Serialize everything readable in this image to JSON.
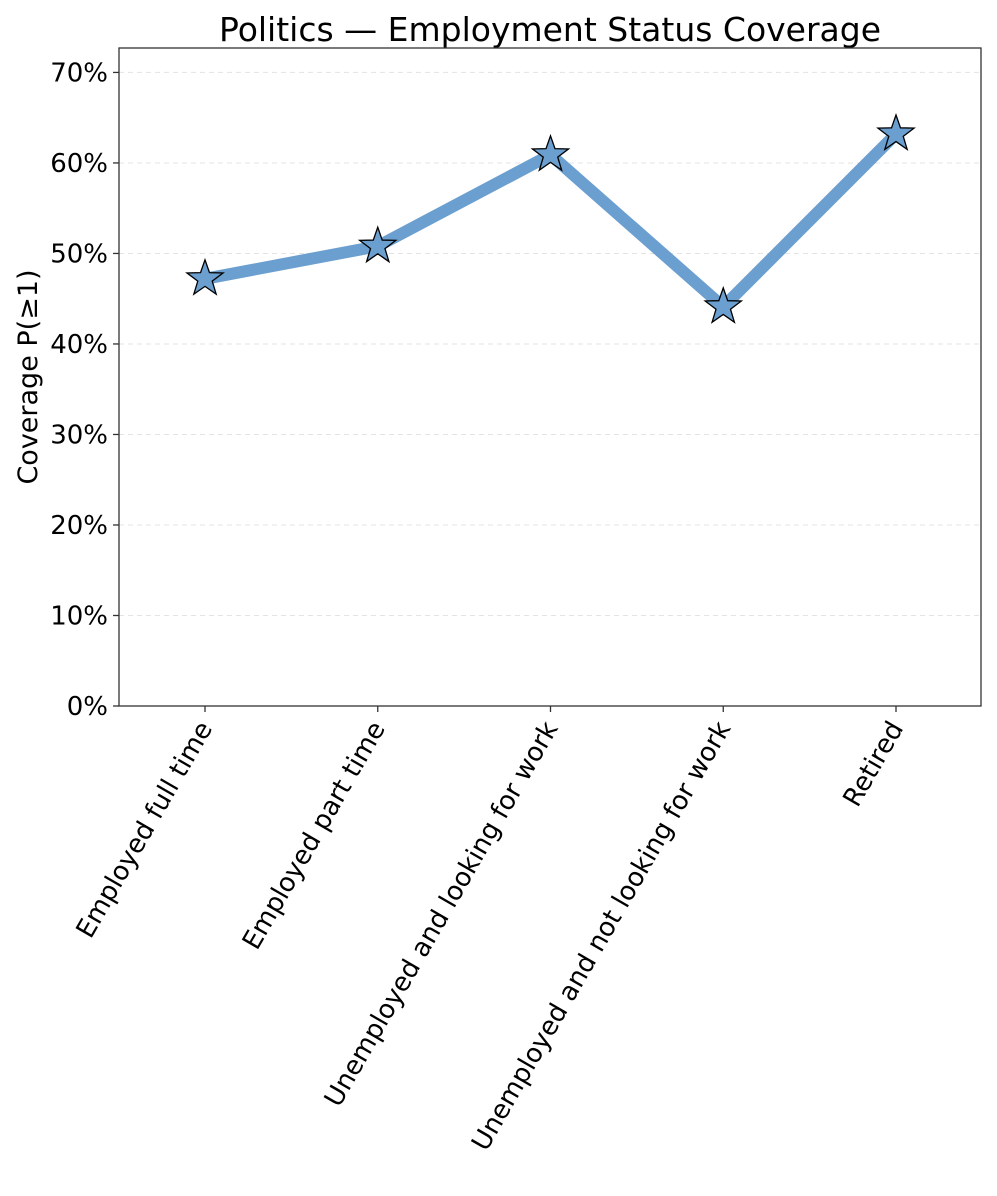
{
  "chart_data": {
    "type": "line",
    "title": "Politics — Employment Status Coverage",
    "xlabel": "",
    "ylabel": "Coverage P(≥1)",
    "categories": [
      "Employed full time",
      "Employed part time",
      "Unemployed and looking for work",
      "Unemployed and not looking for work",
      "Retired"
    ],
    "series": [
      {
        "values": [
          0.472,
          0.508,
          0.609,
          0.441,
          0.632
        ],
        "color": "#6a9fcf",
        "marker": "star"
      }
    ],
    "ylim": [
      0,
      0.727
    ],
    "yticks": [
      0,
      0.1,
      0.2,
      0.3,
      0.4,
      0.5,
      0.6,
      0.7
    ],
    "ytick_labels": [
      "0%",
      "10%",
      "20%",
      "30%",
      "40%",
      "50%",
      "60%",
      "70%"
    ],
    "grid": "y-dashed",
    "legend": "none"
  }
}
